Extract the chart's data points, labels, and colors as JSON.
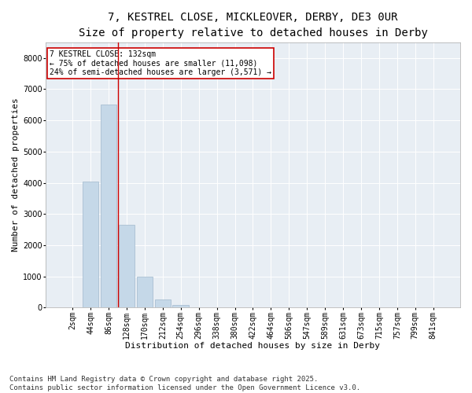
{
  "title1": "7, KESTREL CLOSE, MICKLEOVER, DERBY, DE3 0UR",
  "title2": "Size of property relative to detached houses in Derby",
  "xlabel": "Distribution of detached houses by size in Derby",
  "ylabel": "Number of detached properties",
  "categories": [
    "2sqm",
    "44sqm",
    "86sqm",
    "128sqm",
    "170sqm",
    "212sqm",
    "254sqm",
    "296sqm",
    "338sqm",
    "380sqm",
    "422sqm",
    "464sqm",
    "506sqm",
    "547sqm",
    "589sqm",
    "631sqm",
    "673sqm",
    "715sqm",
    "757sqm",
    "799sqm",
    "841sqm"
  ],
  "values": [
    10,
    4050,
    6500,
    2650,
    1000,
    250,
    80,
    10,
    0,
    0,
    0,
    0,
    0,
    0,
    0,
    0,
    0,
    0,
    0,
    0,
    0
  ],
  "bar_color": "#c5d8e8",
  "bar_edge_color": "#a0b8cc",
  "vline_color": "#cc0000",
  "annotation_text": "7 KESTREL CLOSE: 132sqm\n← 75% of detached houses are smaller (11,098)\n24% of semi-detached houses are larger (3,571) →",
  "annotation_box_color": "#cc0000",
  "ylim": [
    0,
    8500
  ],
  "yticks": [
    0,
    1000,
    2000,
    3000,
    4000,
    5000,
    6000,
    7000,
    8000
  ],
  "background_color": "#e8eef4",
  "footer_text": "Contains HM Land Registry data © Crown copyright and database right 2025.\nContains public sector information licensed under the Open Government Licence v3.0.",
  "title_fontsize": 10,
  "subtitle_fontsize": 9,
  "axis_label_fontsize": 8,
  "tick_fontsize": 7,
  "footer_fontsize": 6.5,
  "ann_fontsize": 7
}
